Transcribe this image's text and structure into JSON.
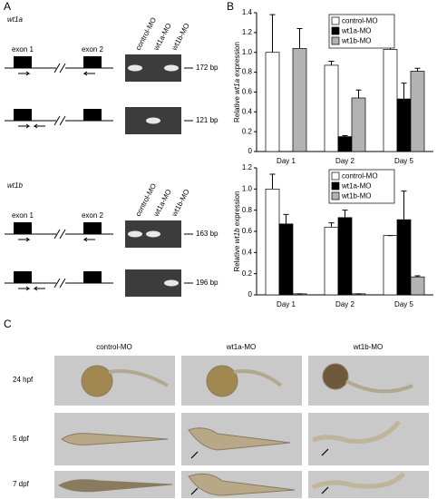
{
  "panel_labels": [
    "A",
    "B",
    "C"
  ],
  "panel_a": {
    "genes": [
      {
        "name": "wt1a",
        "exon_labels": [
          "exon 1",
          "exon 2"
        ],
        "lanes": [
          "control-MO",
          "wt1a-MO",
          "wt1b-MO"
        ],
        "band_sizes": [
          "172 bp",
          "121 bp"
        ]
      },
      {
        "name": "wt1b",
        "exon_labels": [
          "exon 1",
          "exon 2"
        ],
        "lanes": [
          "control-MO",
          "wt1a-MO",
          "wt1b-MO"
        ],
        "band_sizes": [
          "163 bp",
          "196 bp"
        ]
      }
    ]
  },
  "chart_data": [
    {
      "type": "bar",
      "categories": [
        "Day 1",
        "Day 2",
        "Day 5"
      ],
      "y_label": [
        "Relative ",
        "wt1a",
        " expression"
      ],
      "ylim": [
        0,
        1.4
      ],
      "yticks": [
        0,
        0.2,
        0.4,
        0.6,
        0.8,
        {
          "value": 1,
          "label": "1.0"
        },
        1.2,
        1.4
      ],
      "legend": "upper right",
      "series": [
        {
          "name": "control-MO",
          "color": "#ffffff",
          "values": [
            1.0,
            0.87,
            1.03
          ],
          "errors": [
            0.38,
            0.04,
            0.1
          ]
        },
        {
          "name": "wt1a-MO",
          "color": "#000000",
          "values": [
            null,
            0.15,
            0.53
          ],
          "errors": [
            null,
            0.01,
            0.16
          ]
        },
        {
          "name": "wt1b-MO",
          "color": "#b3b3b3",
          "values": [
            1.04,
            0.54,
            0.81
          ],
          "errors": [
            0.2,
            0.08,
            0.03
          ]
        }
      ]
    },
    {
      "type": "bar",
      "categories": [
        "Day 1",
        "Day 2",
        "Day 5"
      ],
      "y_label": [
        "Relative ",
        "wt1b",
        " expression"
      ],
      "ylim": [
        0,
        1.2
      ],
      "yticks": [
        0,
        0.2,
        0.4,
        0.6,
        0.8,
        {
          "value": 1,
          "label": "1.0"
        },
        1.2
      ],
      "legend": "upper right",
      "series": [
        {
          "name": "control-MO",
          "color": "#ffffff",
          "values": [
            1.0,
            0.64,
            0.56
          ],
          "errors": [
            0.14,
            0.04,
            0
          ]
        },
        {
          "name": "wt1a-MO",
          "color": "#000000",
          "values": [
            0.67,
            0.73,
            0.71
          ],
          "errors": [
            0.09,
            0.07,
            0.27
          ]
        },
        {
          "name": "wt1b-MO",
          "color": "#b3b3b3",
          "values": [
            0.01,
            0.01,
            0.17
          ],
          "errors": [
            0,
            0,
            0.01
          ]
        }
      ]
    }
  ],
  "panel_c": {
    "columns": [
      "control-MO",
      "wt1a-MO",
      "wt1b-MO"
    ],
    "rows": [
      "24 hpf",
      "5 dpf",
      "7 dpf"
    ]
  }
}
